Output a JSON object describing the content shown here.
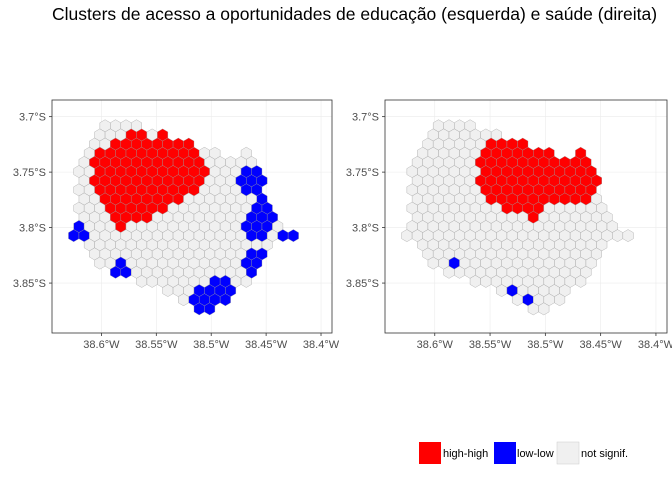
{
  "title": "Clusters de acesso a oportunidades de educação (esquerda) e saúde (direita)",
  "colors": {
    "high_high": "#ff0000",
    "low_low": "#0000ff",
    "not_signif": "#f0f0f0",
    "hex_stroke": "#999999",
    "panel_border": "#333333",
    "grid": "#ebebeb"
  },
  "axes": {
    "x_ticks": [
      {
        "value": -38.6,
        "label": "38.6°W"
      },
      {
        "value": -38.55,
        "label": "38.55°W"
      },
      {
        "value": -38.5,
        "label": "38.5°W"
      },
      {
        "value": -38.45,
        "label": "38.45°W"
      },
      {
        "value": -38.4,
        "label": "38.4°W"
      }
    ],
    "y_ticks": [
      {
        "value": -3.7,
        "label": "3.7°S"
      },
      {
        "value": -3.75,
        "label": "3.75°S"
      },
      {
        "value": -3.8,
        "label": "3.8°S"
      },
      {
        "value": -3.85,
        "label": "3.85°S"
      }
    ],
    "x_range": [
      -38.645,
      -38.39
    ],
    "y_range": [
      -3.895,
      -3.685
    ]
  },
  "panels": [
    {
      "name": "educacao",
      "high_high": [
        {
          "lon": -38.57,
          "lat": -3.755,
          "r": 0.04
        },
        {
          "lon": -38.535,
          "lat": -3.745,
          "r": 0.03
        },
        {
          "lon": -38.58,
          "lat": -3.785,
          "r": 0.015
        },
        {
          "lon": -38.515,
          "lat": -3.75,
          "r": 0.015
        }
      ],
      "low_low": [
        {
          "lon": -38.458,
          "lat": -3.76,
          "r": 0.015
        },
        {
          "lon": -38.455,
          "lat": -3.795,
          "r": 0.015
        },
        {
          "lon": -38.46,
          "lat": -3.83,
          "r": 0.014
        },
        {
          "lon": -38.49,
          "lat": -3.855,
          "r": 0.012
        },
        {
          "lon": -38.505,
          "lat": -3.865,
          "r": 0.014
        },
        {
          "lon": -38.625,
          "lat": -3.805,
          "r": 0.011
        },
        {
          "lon": -38.58,
          "lat": -3.84,
          "r": 0.009
        },
        {
          "lon": -38.43,
          "lat": -3.806,
          "r": 0.006
        },
        {
          "lon": -38.418,
          "lat": -3.812,
          "r": 0.004
        }
      ]
    },
    {
      "name": "saude",
      "high_high": [
        {
          "lon": -38.52,
          "lat": -3.75,
          "r": 0.04
        },
        {
          "lon": -38.48,
          "lat": -3.75,
          "r": 0.03
        },
        {
          "lon": -38.5,
          "lat": -3.745,
          "r": 0.035
        },
        {
          "lon": -38.508,
          "lat": -3.79,
          "r": 0.006
        }
      ],
      "low_low": [
        {
          "lon": -38.627,
          "lat": -3.801,
          "r": 0.004
        },
        {
          "lon": -38.582,
          "lat": -3.833,
          "r": 0.004
        },
        {
          "lon": -38.526,
          "lat": -3.857,
          "r": 0.004
        },
        {
          "lon": -38.517,
          "lat": -3.866,
          "r": 0.004
        }
      ]
    }
  ],
  "legend": {
    "items": [
      {
        "key": "high_high",
        "label": "high-high"
      },
      {
        "key": "low_low",
        "label": "low-low"
      },
      {
        "key": "not_signif",
        "label": "not signif."
      }
    ]
  }
}
